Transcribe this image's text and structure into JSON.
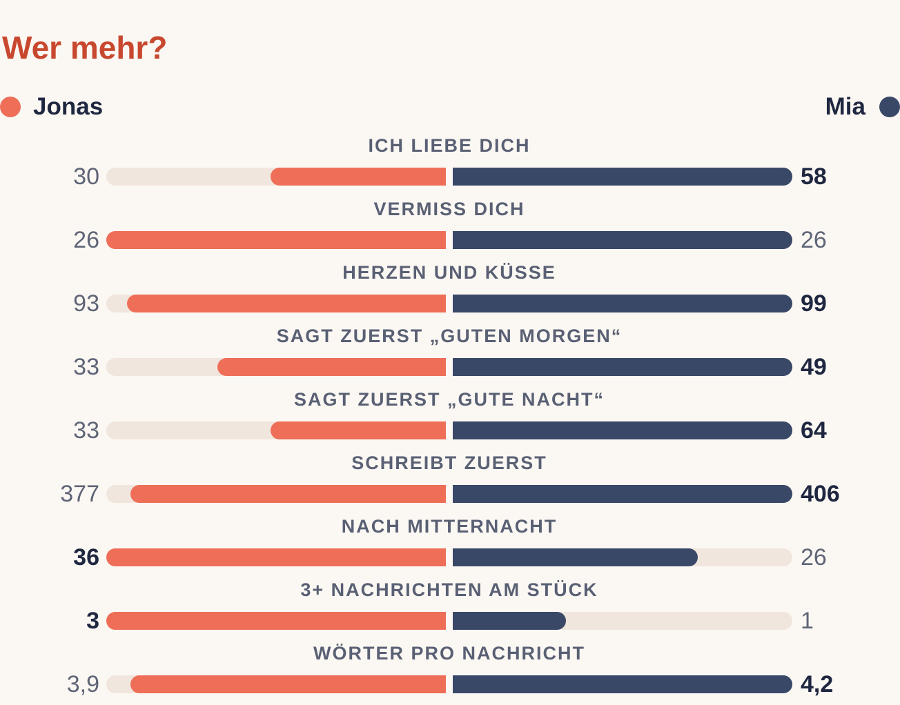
{
  "chart_data": {
    "type": "bar",
    "title": "Wer mehr?",
    "series": [
      {
        "name": "Jonas",
        "color": "#ee6e58",
        "values": [
          30,
          26,
          93,
          33,
          33,
          377,
          36,
          3,
          3.9
        ]
      },
      {
        "name": "Mia",
        "color": "#3a4868",
        "values": [
          58,
          26,
          99,
          49,
          64,
          406,
          26,
          1,
          4.2
        ]
      }
    ],
    "categories": [
      "ICH LIEBE DICH",
      "VERMISS DICH",
      "HERZEN UND KÜSSE",
      "SAGT ZUERST „GUTEN MORGEN“",
      "SAGT ZUERST „GUTE NACHT“",
      "SCHREIBT ZUERST",
      "NACH MITTERNACHT",
      "3+ NACHRICHTEN AM STÜCK",
      "WÖRTER PRO NACHRICHT"
    ],
    "value_labels": {
      "Jonas": [
        "30",
        "26",
        "93",
        "33",
        "33",
        "377",
        "36",
        "3",
        "3,9"
      ],
      "Mia": [
        "58",
        "26",
        "99",
        "49",
        "64",
        "406",
        "26",
        "1",
        "4,2"
      ]
    },
    "track_color": "#f1e6dd",
    "legend_placement": "top-left and top-right"
  }
}
